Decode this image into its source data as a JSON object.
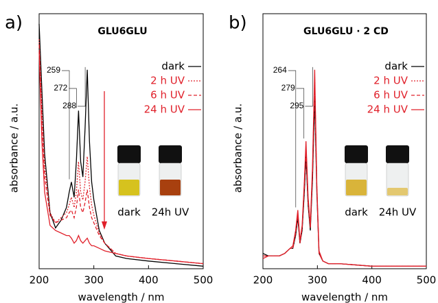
{
  "chart_data": [
    {
      "type": "line",
      "panel_label": "a)",
      "title": "GLU6GLU",
      "xlabel": "wavelength / nm",
      "ylabel": "absorbance / a.u.",
      "xlim": [
        200,
        500
      ],
      "xticks": [
        200,
        300,
        400,
        500
      ],
      "ylim": [
        0,
        1
      ],
      "x": [
        200,
        205,
        210,
        220,
        230,
        240,
        250,
        255,
        259,
        264,
        268,
        272,
        276,
        280,
        284,
        288,
        292,
        296,
        300,
        310,
        320,
        340,
        360,
        400,
        450,
        500
      ],
      "series": [
        {
          "name": "dark",
          "color": "#000000",
          "dash": "solid",
          "values": [
            0.96,
            0.7,
            0.45,
            0.22,
            0.16,
            0.19,
            0.24,
            0.3,
            0.34,
            0.28,
            0.42,
            0.62,
            0.42,
            0.36,
            0.55,
            0.78,
            0.5,
            0.34,
            0.27,
            0.15,
            0.1,
            0.05,
            0.04,
            0.03,
            0.02,
            0.01
          ]
        },
        {
          "name": "2 h UV",
          "color": "#e0202a",
          "dash": "dotted",
          "values": [
            0.9,
            0.62,
            0.4,
            0.22,
            0.18,
            0.2,
            0.22,
            0.25,
            0.28,
            0.24,
            0.3,
            0.42,
            0.3,
            0.27,
            0.34,
            0.44,
            0.32,
            0.25,
            0.21,
            0.14,
            0.1,
            0.06,
            0.05,
            0.04,
            0.03,
            0.02
          ]
        },
        {
          "name": "6 h UV",
          "color": "#e0202a",
          "dash": "dashed",
          "values": [
            0.88,
            0.58,
            0.36,
            0.21,
            0.18,
            0.19,
            0.2,
            0.22,
            0.23,
            0.2,
            0.24,
            0.31,
            0.24,
            0.22,
            0.26,
            0.31,
            0.24,
            0.2,
            0.18,
            0.13,
            0.1,
            0.06,
            0.05,
            0.04,
            0.03,
            0.02
          ]
        },
        {
          "name": "24 h UV",
          "color": "#e0202a",
          "dash": "solid",
          "values": [
            0.85,
            0.5,
            0.3,
            0.17,
            0.15,
            0.14,
            0.13,
            0.13,
            0.12,
            0.1,
            0.11,
            0.13,
            0.11,
            0.1,
            0.11,
            0.12,
            0.1,
            0.09,
            0.09,
            0.08,
            0.07,
            0.06,
            0.05,
            0.04,
            0.03,
            0.02
          ]
        }
      ],
      "peaks": [
        259,
        272,
        288
      ],
      "trend_arrow": true,
      "inset": {
        "labels": [
          "dark",
          "24h UV"
        ],
        "colors": [
          "#d6c21e",
          "#a8400f"
        ]
      }
    },
    {
      "type": "line",
      "panel_label": "b)",
      "title": "GLU6GLU · 2 CD",
      "xlabel": "wavelength / nm",
      "ylabel": "absorbance / a.u.",
      "xlim": [
        200,
        500
      ],
      "xticks": [
        200,
        300,
        400,
        500
      ],
      "ylim": [
        0,
        1
      ],
      "x": [
        200,
        210,
        220,
        230,
        240,
        250,
        255,
        260,
        264,
        268,
        272,
        276,
        279,
        283,
        287,
        291,
        295,
        299,
        303,
        310,
        320,
        340,
        400,
        450,
        500
      ],
      "series": [
        {
          "name": "dark",
          "color": "#000000",
          "dash": "solid",
          "values": [
            0.06,
            0.05,
            0.05,
            0.05,
            0.06,
            0.08,
            0.08,
            0.13,
            0.2,
            0.1,
            0.15,
            0.3,
            0.44,
            0.25,
            0.15,
            0.35,
            0.67,
            0.3,
            0.06,
            0.03,
            0.02,
            0.02,
            0.01,
            0.01,
            0.01
          ]
        },
        {
          "name": "2 h UV",
          "color": "#e0202a",
          "dash": "dotted",
          "values": [
            0.05,
            0.05,
            0.05,
            0.05,
            0.06,
            0.08,
            0.08,
            0.14,
            0.22,
            0.1,
            0.16,
            0.33,
            0.48,
            0.27,
            0.16,
            0.38,
            0.75,
            0.32,
            0.06,
            0.03,
            0.02,
            0.02,
            0.01,
            0.01,
            0.01
          ]
        },
        {
          "name": "6 h UV",
          "color": "#e0202a",
          "dash": "dashed",
          "values": [
            0.05,
            0.05,
            0.05,
            0.05,
            0.06,
            0.08,
            0.08,
            0.14,
            0.21,
            0.1,
            0.16,
            0.32,
            0.47,
            0.26,
            0.16,
            0.38,
            0.73,
            0.31,
            0.06,
            0.03,
            0.02,
            0.02,
            0.01,
            0.01,
            0.01
          ]
        },
        {
          "name": "24 h UV",
          "color": "#e0202a",
          "dash": "solid",
          "values": [
            0.04,
            0.05,
            0.05,
            0.05,
            0.06,
            0.08,
            0.09,
            0.15,
            0.23,
            0.11,
            0.17,
            0.34,
            0.5,
            0.28,
            0.17,
            0.4,
            0.78,
            0.33,
            0.07,
            0.03,
            0.02,
            0.02,
            0.01,
            0.01,
            0.01
          ]
        }
      ],
      "peaks": [
        264,
        279,
        295
      ],
      "trend_arrow": false,
      "inset": {
        "labels": [
          "dark",
          "24h UV"
        ],
        "colors": [
          "#d9b43a",
          "#e3c870"
        ]
      }
    }
  ]
}
